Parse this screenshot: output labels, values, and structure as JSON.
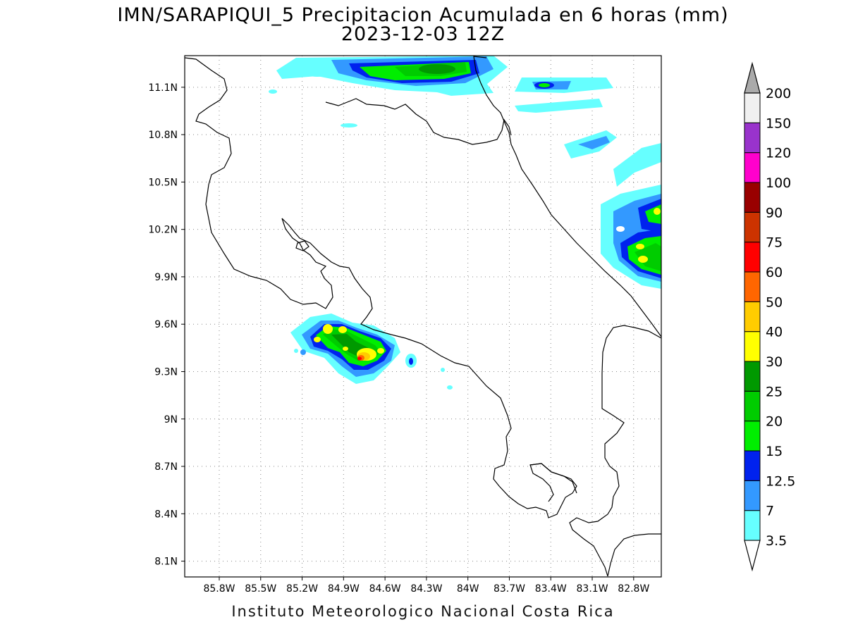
{
  "title": {
    "line1": "IMN/SARAPIQUI_5 Precipitacion Acumulada en 6 horas (mm)",
    "line2": "2023-12-03 12Z"
  },
  "credit": "Instituto Meteorologico Nacional Costa Rica",
  "map": {
    "lon_range": [
      -86.05,
      -82.6
    ],
    "lat_range": [
      8.0,
      11.3
    ],
    "lon_ticks": [
      "85.8W",
      "85.5W",
      "85.2W",
      "84.9W",
      "84.6W",
      "84.3W",
      "84W",
      "83.7W",
      "83.4W",
      "83.1W",
      "82.8W"
    ],
    "lon_tick_values": [
      -85.8,
      -85.5,
      -85.2,
      -84.9,
      -84.6,
      -84.3,
      -84.0,
      -83.7,
      -83.4,
      -83.1,
      -82.8
    ],
    "lat_ticks": [
      "11.1N",
      "10.8N",
      "10.5N",
      "10.2N",
      "9.9N",
      "9.6N",
      "9.3N",
      "9N",
      "8.7N",
      "8.4N",
      "8.1N"
    ],
    "lat_tick_values": [
      11.1,
      10.8,
      10.5,
      10.2,
      9.9,
      9.6,
      9.3,
      9.0,
      8.7,
      8.4,
      8.1
    ],
    "grid": "dotted"
  },
  "colorbar": {
    "labels": [
      "3.5",
      "7",
      "12.5",
      "15",
      "20",
      "25",
      "30",
      "40",
      "50",
      "60",
      "75",
      "90",
      "100",
      "120",
      "150",
      "200"
    ],
    "colors": [
      "#66ffff",
      "#3399ff",
      "#0022ee",
      "#00ee00",
      "#00cc00",
      "#009900",
      "#ffff00",
      "#ffcc00",
      "#ff6600",
      "#ff0000",
      "#cc3300",
      "#990000",
      "#ff00cc",
      "#9933cc",
      "#f0f0f0",
      "#aaaaaa"
    ],
    "units": "mm"
  }
}
